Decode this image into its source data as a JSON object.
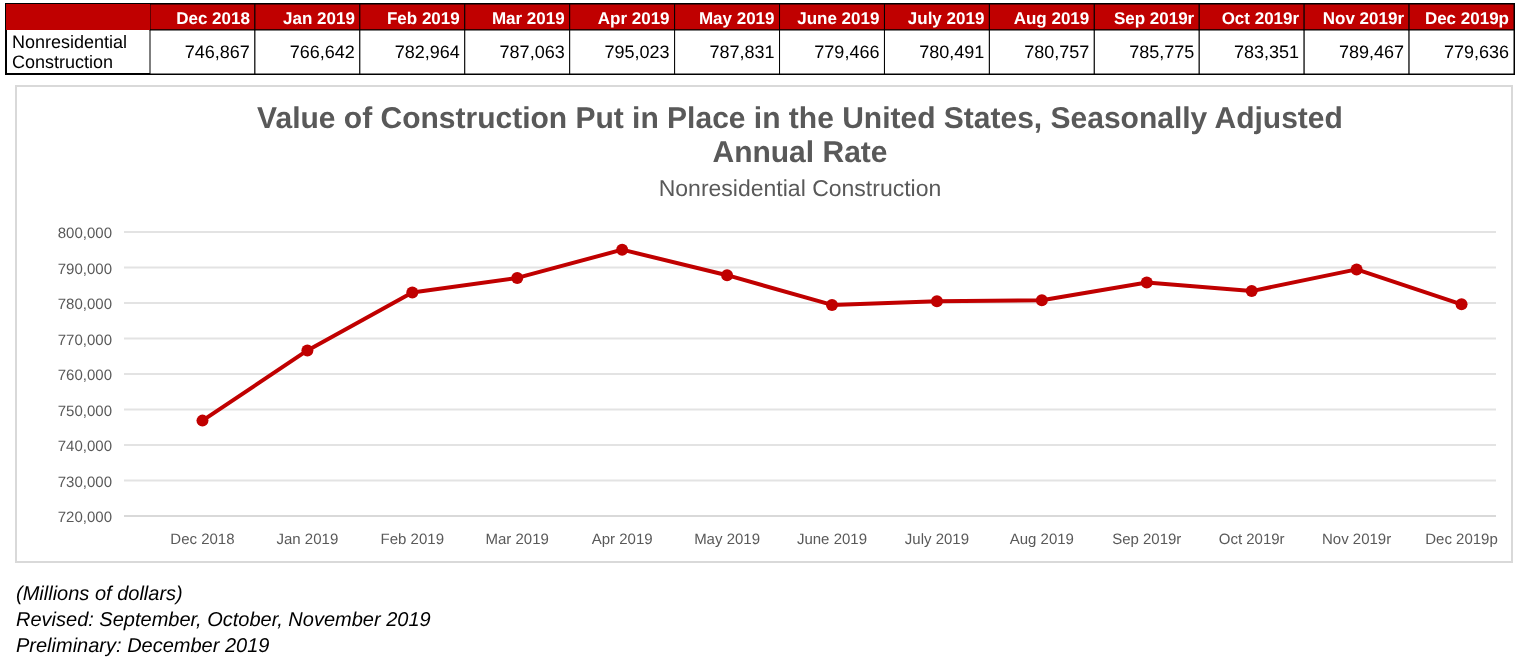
{
  "chart_data": {
    "type": "line",
    "title": "Value of Construction Put in Place in the United States, Seasonally Adjusted Annual Rate",
    "subtitle": "Nonresidential Construction",
    "categories": [
      "Dec 2018",
      "Jan 2019",
      "Feb 2019",
      "Mar 2019",
      "Apr 2019",
      "May 2019",
      "June 2019",
      "July 2019",
      "Aug 2019",
      "Sep 2019r",
      "Oct 2019r",
      "Nov 2019r",
      "Dec 2019p"
    ],
    "series": [
      {
        "name": "Nonresidential Construction",
        "color": "#c00000",
        "values": [
          746867,
          766642,
          782964,
          787063,
          795023,
          787831,
          779466,
          780491,
          780757,
          785775,
          783351,
          789467,
          779636
        ],
        "value_labels": [
          "746,867",
          "766,642",
          "782,964",
          "787,063",
          "795,023",
          "787,831",
          "779,466",
          "780,491",
          "780,757",
          "785,775",
          "783,351",
          "789,467",
          "779,636"
        ]
      }
    ],
    "ylim": [
      720000,
      800000
    ],
    "yticks": [
      {
        "value": 720000,
        "label": "720,000"
      },
      {
        "value": 730000,
        "label": "730,000"
      },
      {
        "value": 740000,
        "label": "740,000"
      },
      {
        "value": 750000,
        "label": "750,000"
      },
      {
        "value": 760000,
        "label": "760,000"
      },
      {
        "value": 770000,
        "label": "770,000"
      },
      {
        "value": 780000,
        "label": "780,000"
      },
      {
        "value": 790000,
        "label": "790,000"
      },
      {
        "value": 800000,
        "label": "800,000"
      }
    ],
    "grid": "y",
    "marker": "circle",
    "line_style": "solid",
    "legend": false,
    "annotations": [
      "(Millions of dollars)",
      "Revised: September, October, November 2019",
      "Preliminary: December 2019"
    ]
  }
}
